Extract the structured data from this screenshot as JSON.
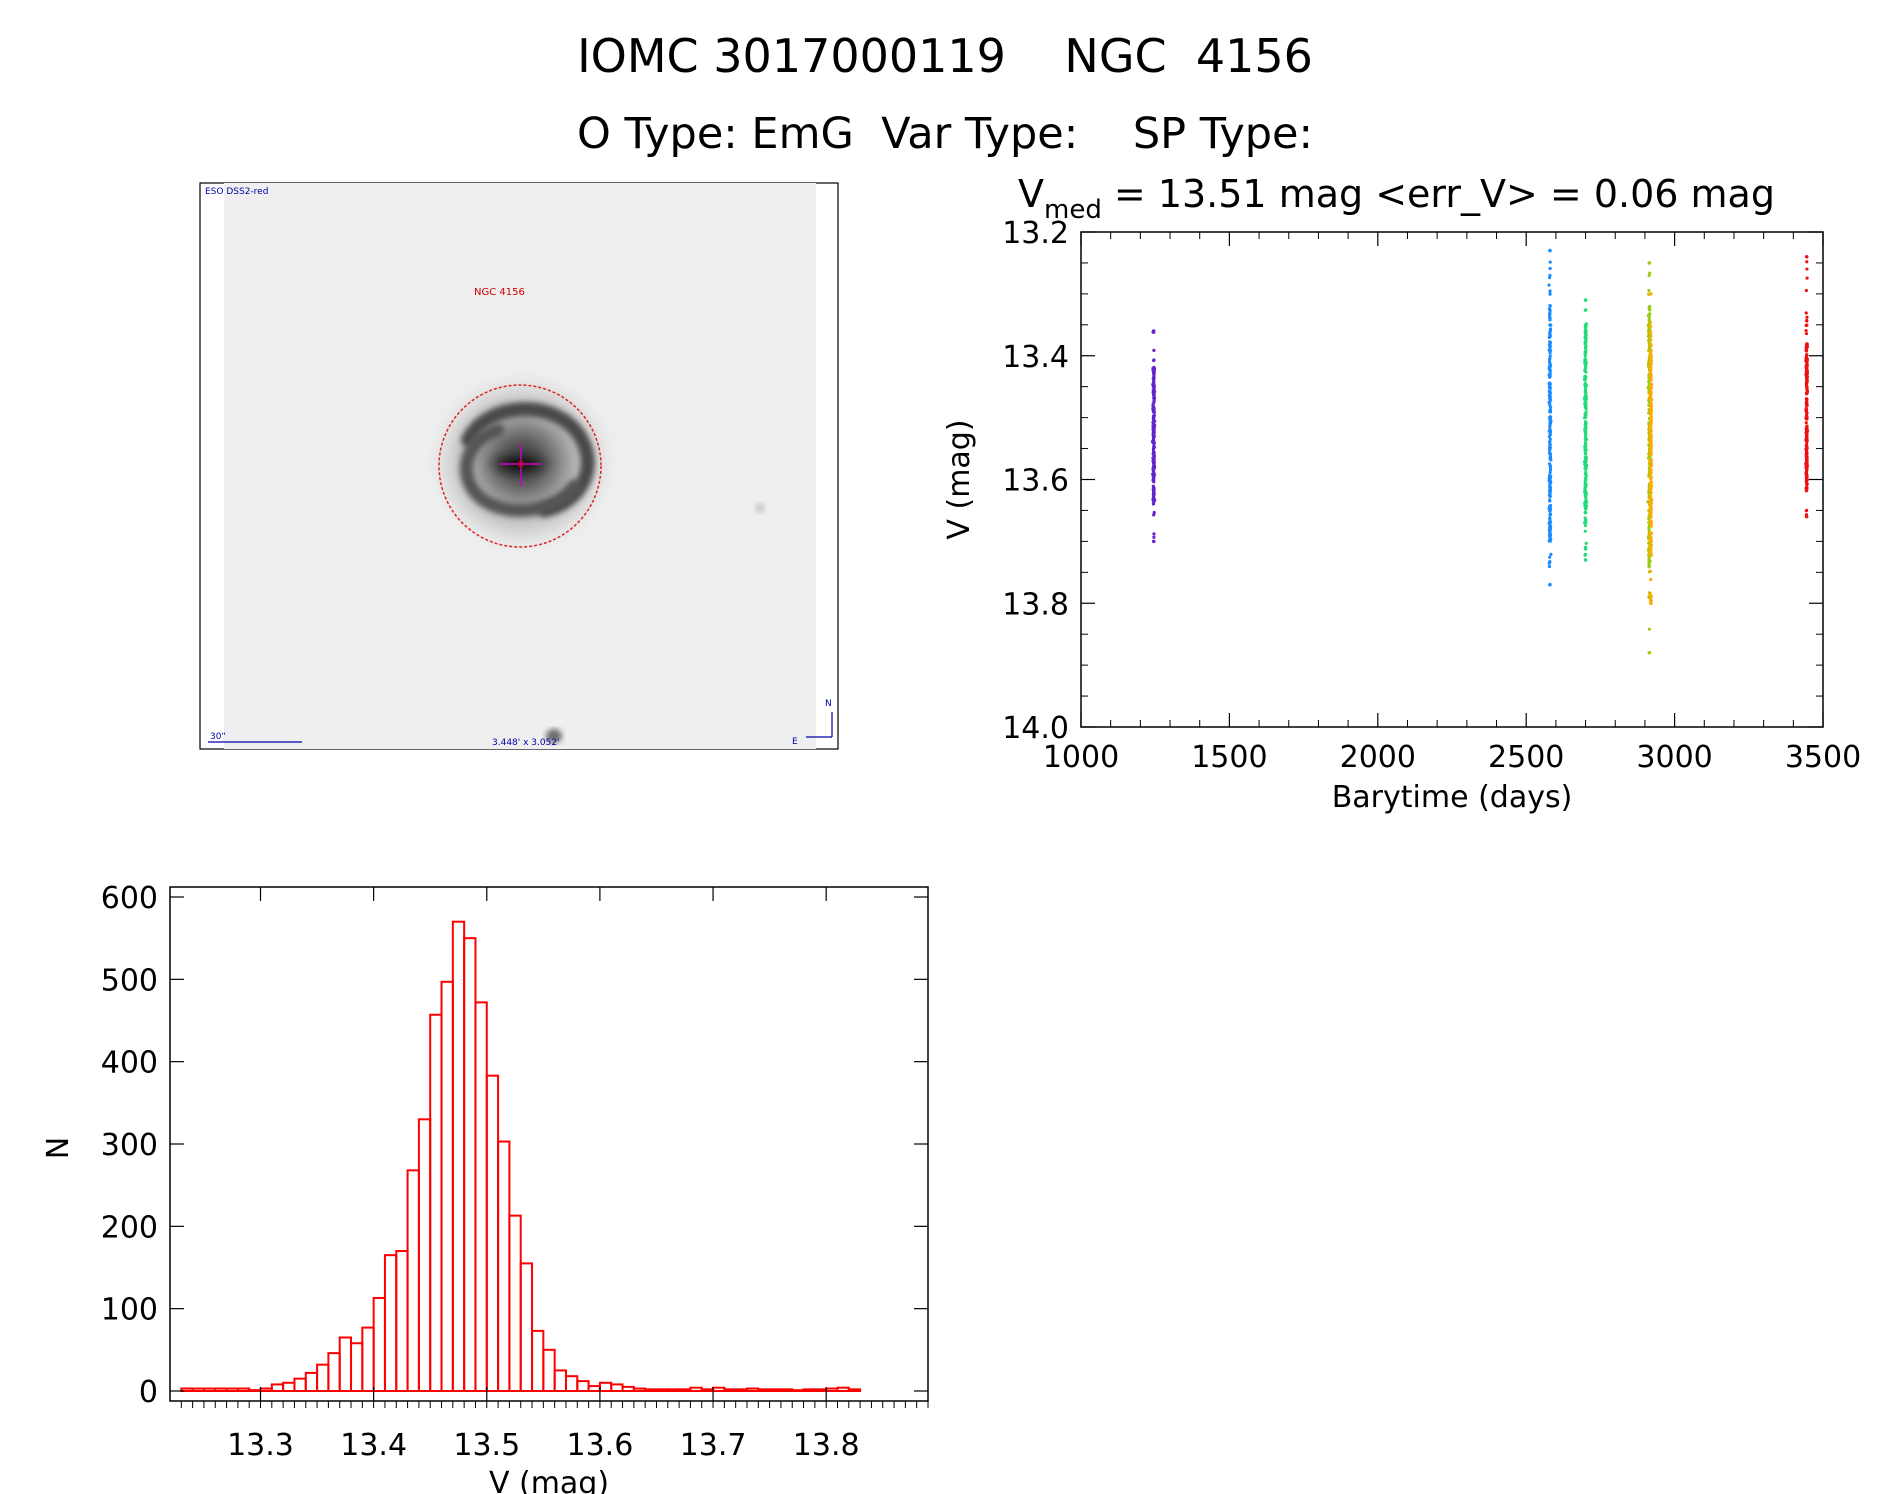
{
  "header": {
    "title": "IOMC 3017000119    NGC  4156",
    "subtitle": "O Type: EmG  Var Type:    SP Type:"
  },
  "finder": {
    "survey_label": "ESO DSS2-red",
    "object_label": "NGC 4156",
    "scale_label": "30\"",
    "size_label": "3.448' x 3.052'",
    "north_label": "N",
    "east_label": "E",
    "colors": {
      "label": "#0000aa",
      "object": "#cc0000",
      "aperture": "#dd2222",
      "crosshair": "#cc00cc"
    }
  },
  "lightcurve_title": {
    "prefix": "V",
    "subscript": "med",
    "rest": " = 13.51 mag <err_V> = 0.06 mag"
  },
  "chart_data": [
    {
      "type": "scatter",
      "xlabel": "Barytime (days)",
      "ylabel": "V (mag)",
      "xlim": [
        1000,
        3500
      ],
      "ylim": [
        14.0,
        13.2
      ],
      "x_ticks": [
        1000,
        1500,
        2000,
        2500,
        3000,
        3500
      ],
      "y_ticks": [
        "13.2",
        "13.4",
        "13.6",
        "13.8",
        "14.0"
      ],
      "series": [
        {
          "x_center": 1245,
          "x_spread": 6,
          "y_min": 13.36,
          "y_max": 13.7,
          "y_core": [
            13.42,
            13.64
          ],
          "color": "#6622cc"
        },
        {
          "x_center": 2580,
          "x_spread": 6,
          "y_min": 13.23,
          "y_max": 13.77,
          "y_core": [
            13.32,
            13.7
          ],
          "color": "#1a8cff"
        },
        {
          "x_center": 2700,
          "x_spread": 6,
          "y_min": 13.31,
          "y_max": 13.73,
          "y_core": [
            13.35,
            13.67
          ],
          "color": "#22dd77"
        },
        {
          "x_center": 2915,
          "x_spread": 6,
          "y_min": 13.25,
          "y_max": 13.88,
          "y_core": [
            13.32,
            13.75
          ],
          "color": "#9ccc11"
        },
        {
          "x_center": 2920,
          "x_spread": 5,
          "y_min": 13.3,
          "y_max": 13.8,
          "y_core": [
            13.38,
            13.72
          ],
          "color": "#ffaa00"
        },
        {
          "x_center": 3445,
          "x_spread": 5,
          "y_min": 13.24,
          "y_max": 13.66,
          "y_core": [
            13.38,
            13.62
          ],
          "color": "#ee1111"
        }
      ]
    },
    {
      "type": "bar",
      "xlabel": "V (mag)",
      "ylabel": "N",
      "xlim": [
        13.22,
        13.89
      ],
      "ylim": [
        0,
        600
      ],
      "x_ticks": [
        "13.3",
        "13.4",
        "13.5",
        "13.6",
        "13.7",
        "13.8"
      ],
      "y_ticks": [
        "0",
        "100",
        "200",
        "300",
        "400",
        "500",
        "600"
      ],
      "bin_start": 13.23,
      "bin_width": 0.01,
      "values": [
        3,
        3,
        3,
        3,
        3,
        3,
        1,
        3,
        8,
        10,
        15,
        22,
        32,
        46,
        65,
        58,
        77,
        113,
        165,
        170,
        268,
        330,
        457,
        497,
        570,
        550,
        472,
        383,
        303,
        213,
        155,
        73,
        50,
        25,
        18,
        12,
        6,
        10,
        8,
        5,
        3,
        2,
        2,
        2,
        2,
        4,
        2,
        4,
        2,
        2,
        3,
        2,
        2,
        2,
        1,
        2,
        2,
        3,
        4,
        2
      ],
      "color": "#ff0000"
    }
  ]
}
